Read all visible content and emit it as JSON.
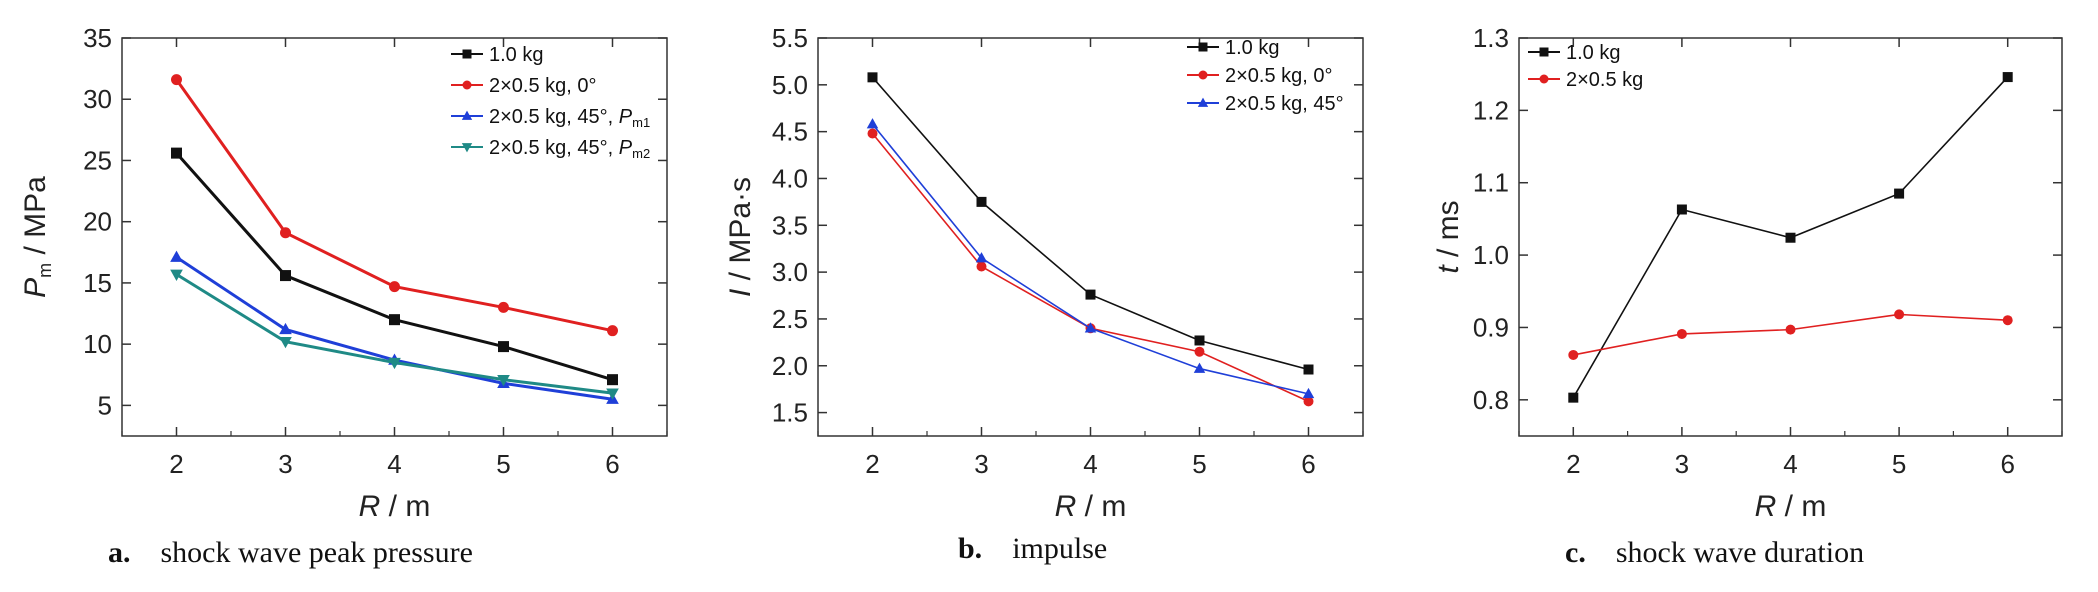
{
  "chart_data": [
    {
      "type": "line",
      "caption_letter": "a.",
      "caption_text": "shock wave peak pressure",
      "xlabel": "R / m",
      "ylabel": "Pm / MPa",
      "ylabel_parts": {
        "italic": "P",
        "sub": "m",
        "rest": " / MPa"
      },
      "xlabel_parts": {
        "italic": "R",
        "rest": " / m"
      },
      "x": [
        2,
        3,
        4,
        5,
        6
      ],
      "xlim": [
        1.5,
        6.5
      ],
      "ylim": [
        2.5,
        35
      ],
      "yticks": [
        5,
        10,
        15,
        20,
        25,
        30,
        35
      ],
      "ytick_labels": [
        "5",
        "10",
        "15",
        "20",
        "25",
        "30",
        "35"
      ],
      "legend_position": "top-right",
      "series": [
        {
          "name": "1.0 kg",
          "name_parts": {
            "text": "1.0 kg"
          },
          "color": "#111111",
          "marker": "square",
          "values": [
            25.6,
            15.6,
            12.0,
            9.8,
            7.1
          ]
        },
        {
          "name": "2×0.5 kg, 0°",
          "name_parts": {
            "text": "2×0.5 kg, 0°"
          },
          "color": "#e02020",
          "marker": "circle",
          "values": [
            31.6,
            19.1,
            14.7,
            13.0,
            11.1
          ]
        },
        {
          "name": "2×0.5 kg, 45°, Pm1",
          "name_parts": {
            "text": "2×0.5 kg, 45°, ",
            "italic": "P",
            "sub": "m1"
          },
          "color": "#1f3fd8",
          "marker": "triangle-up",
          "values": [
            17.1,
            11.2,
            8.7,
            6.8,
            5.5
          ]
        },
        {
          "name": "2×0.5 kg, 45°, Pm2",
          "name_parts": {
            "text": "2×0.5 kg, 45°, ",
            "italic": "P",
            "sub": "m2"
          },
          "color": "#1f8a86",
          "marker": "triangle-down",
          "values": [
            15.7,
            10.2,
            8.5,
            7.1,
            6.0
          ]
        }
      ]
    },
    {
      "type": "line",
      "caption_letter": "b.",
      "caption_text": "impulse",
      "xlabel": "R / m",
      "ylabel": "I / MPa·s",
      "ylabel_parts": {
        "italic": "I",
        "rest": " / MPa·s"
      },
      "xlabel_parts": {
        "italic": "R",
        "rest": " / m"
      },
      "x": [
        2,
        3,
        4,
        5,
        6
      ],
      "xlim": [
        1.5,
        6.5
      ],
      "ylim": [
        1.25,
        5.5
      ],
      "yticks": [
        1.5,
        2.0,
        2.5,
        3.0,
        3.5,
        4.0,
        4.5,
        5.0,
        5.5
      ],
      "ytick_labels": [
        "1.5",
        "2.0",
        "2.5",
        "3.0",
        "3.5",
        "4.0",
        "4.5",
        "5.0",
        "5.5"
      ],
      "legend_position": "top-right",
      "series": [
        {
          "name": "1.0 kg",
          "name_parts": {
            "text": "1.0 kg"
          },
          "color": "#111111",
          "marker": "square",
          "values": [
            5.08,
            3.75,
            2.76,
            2.27,
            1.96
          ]
        },
        {
          "name": "2×0.5 kg, 0°",
          "name_parts": {
            "text": "2×0.5 kg, 0°"
          },
          "color": "#e02020",
          "marker": "circle",
          "values": [
            4.48,
            3.06,
            2.4,
            2.15,
            1.62
          ]
        },
        {
          "name": "2×0.5 kg, 45°",
          "name_parts": {
            "text": "2×0.5 kg, 45°"
          },
          "color": "#1f3fd8",
          "marker": "triangle-up",
          "values": [
            4.58,
            3.15,
            2.4,
            1.97,
            1.7
          ]
        }
      ]
    },
    {
      "type": "line",
      "caption_letter": "c.",
      "caption_text": "shock wave duration",
      "xlabel": "R / m",
      "ylabel": "t / ms",
      "ylabel_parts": {
        "italic": "t",
        "rest": " / ms"
      },
      "xlabel_parts": {
        "italic": "R",
        "rest": " / m"
      },
      "x": [
        2,
        3,
        4,
        5,
        6
      ],
      "xlim": [
        1.5,
        6.5
      ],
      "ylim": [
        0.75,
        1.3
      ],
      "yticks": [
        0.8,
        0.9,
        1.0,
        1.1,
        1.2,
        1.3
      ],
      "ytick_labels": [
        "0.8",
        "0.9",
        "1.0",
        "1.1",
        "1.2",
        "1.3"
      ],
      "legend_position": "top-left",
      "series": [
        {
          "name": "1.0 kg",
          "name_parts": {
            "text": "1.0 kg"
          },
          "color": "#111111",
          "marker": "square",
          "values": [
            0.803,
            1.063,
            1.024,
            1.085,
            1.246
          ]
        },
        {
          "name": "2×0.5 kg",
          "name_parts": {
            "text": "2×0.5 kg"
          },
          "color": "#e02020",
          "marker": "circle",
          "values": [
            0.862,
            0.891,
            0.897,
            0.918,
            0.91
          ]
        }
      ]
    }
  ]
}
